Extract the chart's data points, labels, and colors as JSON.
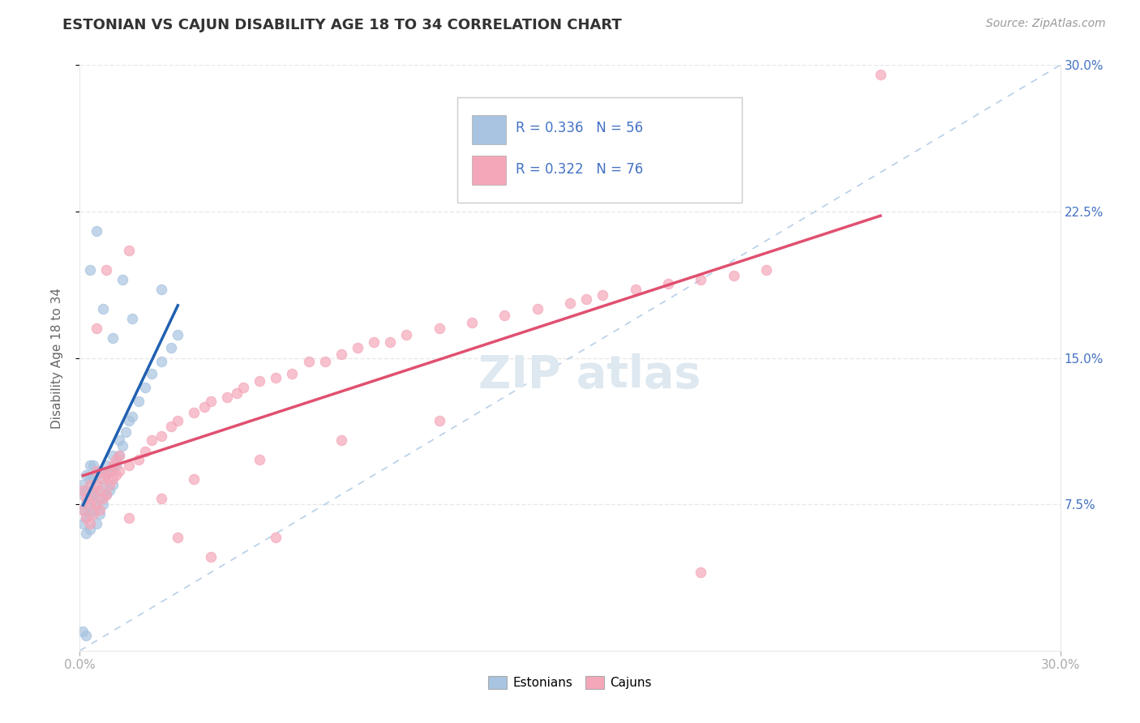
{
  "title": "ESTONIAN VS CAJUN DISABILITY AGE 18 TO 34 CORRELATION CHART",
  "source_text": "Source: ZipAtlas.com",
  "xlabel": "",
  "ylabel": "Disability Age 18 to 34",
  "xlim": [
    0.0,
    0.3
  ],
  "ylim": [
    0.0,
    0.3
  ],
  "xtick_labels": [
    "0.0%",
    "30.0%"
  ],
  "ytick_labels": [
    "7.5%",
    "15.0%",
    "22.5%",
    "30.0%"
  ],
  "ytick_values": [
    0.075,
    0.15,
    0.225,
    0.3
  ],
  "legend_r1": "R = 0.336",
  "legend_n1": "N = 56",
  "legend_r2": "R = 0.322",
  "legend_n2": "N = 76",
  "estonian_color": "#a8c4e0",
  "cajun_color": "#f4a7b9",
  "estonian_line_color": "#2060b0",
  "cajun_line_color": "#e05070",
  "diagonal_color": "#b8cfe8",
  "background_color": "#ffffff",
  "watermark_color": "#dde8f0",
  "grid_color": "#e8e8e8",
  "tick_color": "#aaaaaa",
  "label_color": "#666666",
  "right_tick_color": "#4472c4",
  "watermark_text": "ZIP atlas",
  "title_fontsize": 13,
  "source_fontsize": 10
}
